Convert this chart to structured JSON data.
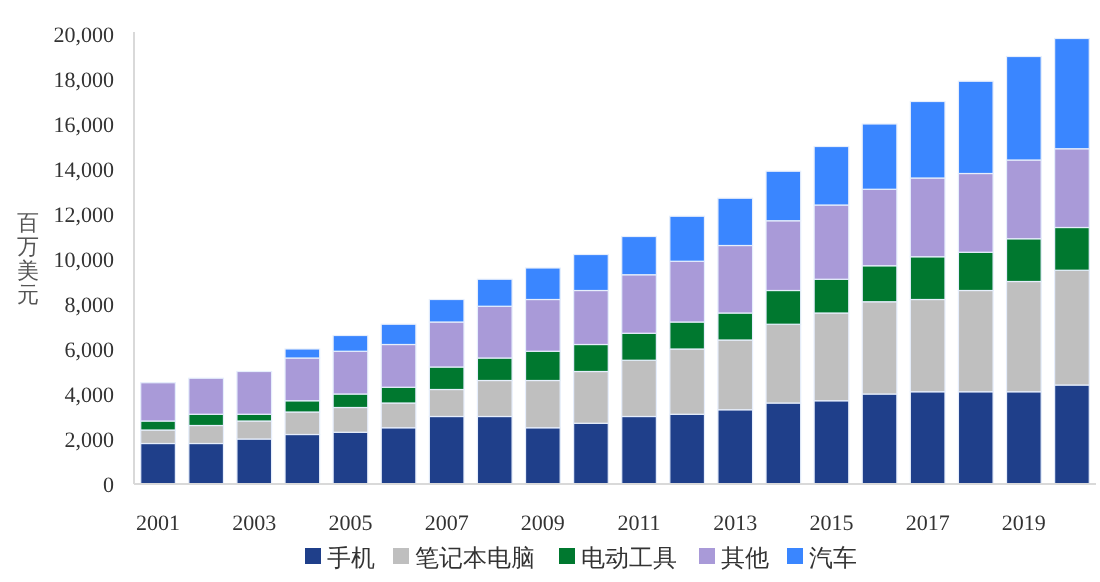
{
  "chart_data": {
    "type": "bar",
    "stacked": true,
    "ylabel": "百万美元",
    "categories": [
      "2001",
      null,
      "2003",
      null,
      "2005",
      null,
      "2007",
      null,
      "2009",
      null,
      "2011",
      null,
      "2013",
      null,
      "2015",
      null,
      "2017",
      null,
      "2019",
      null
    ],
    "series": [
      {
        "name": "手机",
        "color": "#1f3f8a",
        "values": [
          1800,
          1800,
          2000,
          2200,
          2300,
          2500,
          3000,
          3000,
          2500,
          2700,
          3000,
          3100,
          3300,
          3600,
          3700,
          4000,
          4100,
          4100,
          4100,
          4400
        ]
      },
      {
        "name": "笔记本电脑",
        "color": "#bfbfbf",
        "values": [
          600,
          800,
          800,
          1000,
          1100,
          1100,
          1200,
          1600,
          2100,
          2300,
          2500,
          2900,
          3100,
          3500,
          3900,
          4100,
          4100,
          4500,
          4900,
          5100
        ]
      },
      {
        "name": "电动工具",
        "color": "#00782f",
        "values": [
          400,
          500,
          300,
          500,
          600,
          700,
          1000,
          1000,
          1300,
          1200,
          1200,
          1200,
          1200,
          1500,
          1500,
          1600,
          1900,
          1700,
          1900,
          1900
        ]
      },
      {
        "name": "其他",
        "color": "#a99ad8",
        "values": [
          1700,
          1600,
          1900,
          1900,
          1900,
          1900,
          2000,
          2300,
          2300,
          2400,
          2600,
          2700,
          3000,
          3100,
          3300,
          3400,
          3500,
          3500,
          3500,
          3500
        ]
      },
      {
        "name": "汽车",
        "color": "#3a86ff",
        "values": [
          0,
          0,
          0,
          400,
          700,
          900,
          1000,
          1200,
          1400,
          1600,
          1700,
          2000,
          2100,
          2200,
          2600,
          2900,
          3400,
          4100,
          4600,
          4900
        ]
      }
    ],
    "ylim": [
      0,
      20000
    ],
    "yticks": [
      0,
      {
        "value": 2000,
        "label": "2,000"
      },
      {
        "value": 4000,
        "label": "4,000"
      },
      {
        "value": 6000,
        "label": "6,000"
      },
      {
        "value": 8000,
        "label": "8,000"
      },
      {
        "value": 10000,
        "label": "10,000"
      },
      {
        "value": 12000,
        "label": "12,000"
      },
      {
        "value": 14000,
        "label": "14,000"
      },
      {
        "value": 16000,
        "label": "16,000"
      },
      {
        "value": 18000,
        "label": "18,000"
      },
      {
        "value": 20000,
        "label": "20,000"
      }
    ],
    "grid": false,
    "legend": "bottom"
  }
}
